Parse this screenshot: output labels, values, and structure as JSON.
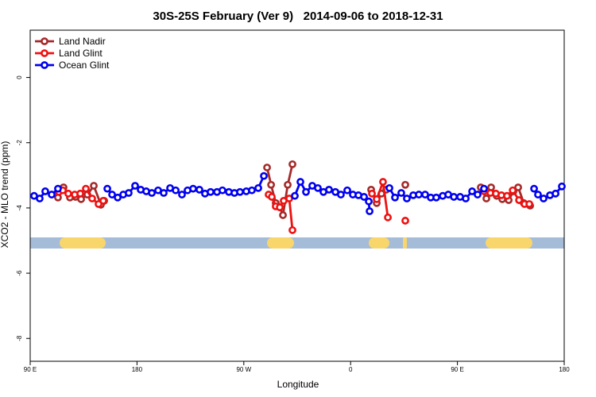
{
  "chart_data": {
    "type": "line",
    "title": "30S-25S February (Ver 9)   2014-09-06 to 2018-12-31",
    "x_label": "Longitude",
    "y_label": "XCO2 - MLO trend (ppm)",
    "xlim": [
      90,
      540
    ],
    "ylim": [
      -8.7,
      1.45
    ],
    "xticks": [
      {
        "value": 90,
        "label": "90 E"
      },
      180,
      {
        "value": 270,
        "label": "90 W"
      },
      {
        "value": 360,
        "label": "0"
      },
      {
        "value": 450,
        "label": "90 E"
      },
      {
        "value": 540,
        "label": "180"
      }
    ],
    "yticks": [
      0,
      -2,
      -4,
      -6,
      -8
    ],
    "grid": false,
    "legend": "top-left",
    "series": [
      {
        "name": "Land Nadir",
        "color": "#a52a2a",
        "x": [
          113.4,
          118.1,
          123.5,
          128.2,
          132.9,
          138.2,
          143.6,
          149.6,
          152.3,
          null,
          289.6,
          293,
          296.9,
          300.3,
          303,
          307,
          311,
          null,
          377.3,
          382,
          386,
          390,
          null,
          406.1,
          null,
          469.7,
          474.4,
          478.4,
          483.1,
          487.8,
          493.2,
          497.2,
          501.2,
          505.9,
          511.3
        ],
        "values": [
          -3.68,
          -3.37,
          -3.68,
          -3.66,
          -3.73,
          -3.59,
          -3.32,
          -3.9,
          -3.78,
          null,
          -2.76,
          -3.29,
          -3.85,
          -3.98,
          -4.22,
          -3.29,
          -2.66,
          null,
          -3.44,
          -3.85,
          -3.56,
          -3.44,
          null,
          -3.29,
          null,
          -3.37,
          -3.71,
          -3.37,
          -3.63,
          -3.73,
          -3.76,
          -3.49,
          -3.37,
          -3.85,
          -3.93
        ]
      },
      {
        "name": "Land Glint",
        "color": "#ee1111",
        "x": [
          114.1,
          117.5,
          122.1,
          127.5,
          132.2,
          136.9,
          142.2,
          147.6,
          151.6,
          null,
          290.9,
          293.6,
          296.9,
          300.3,
          303.6,
          308.3,
          311,
          null,
          378,
          382,
          387.3,
          391.4,
          null,
          406.1,
          null,
          472.4,
          477.8,
          482.4,
          487.1,
          491.8,
          496.6,
          501.9,
          506.6,
          510.6
        ],
        "values": [
          -3.51,
          -3.46,
          -3.56,
          -3.59,
          -3.56,
          -3.41,
          -3.71,
          -3.88,
          -3.78,
          null,
          -3.59,
          -3.66,
          -3.95,
          -3.98,
          -3.78,
          -3.71,
          -4.68,
          null,
          -3.56,
          -3.73,
          -3.2,
          -4.29,
          null,
          -4.39,
          null,
          -3.49,
          -3.54,
          -3.56,
          -3.61,
          -3.63,
          -3.46,
          -3.76,
          -3.88,
          -3.88
        ]
      },
      {
        "name": "Ocean Glint",
        "color": "#0000ee",
        "x": [
          93.3,
          98,
          102.7,
          108.1,
          113.4,
          null,
          155,
          159,
          163.7,
          168.4,
          173,
          178.4,
          183.1,
          187.8,
          192.5,
          197.8,
          202.5,
          207.9,
          212.6,
          217.9,
          222.6,
          227.3,
          232.6,
          237.3,
          242,
          247.4,
          252,
          257.4,
          262.1,
          266.8,
          272.1,
          276.8,
          282.2,
          286.9,
          null,
          313,
          317.7,
          322.4,
          327.7,
          332.4,
          337.1,
          341.8,
          347.2,
          351.8,
          357.2,
          361.9,
          366.6,
          371.3,
          375.3,
          376,
          null,
          392.7,
          397.4,
          402.7,
          407.4,
          412.8,
          417.5,
          422.8,
          427.5,
          432.2,
          437.6,
          442.3,
          447,
          452.3,
          457,
          462.4,
          467,
          472.4,
          null,
          514.6,
          517.9,
          522.6,
          528,
          532.7,
          538
        ],
        "values": [
          -3.63,
          -3.71,
          -3.49,
          -3.59,
          -3.41,
          null,
          -3.41,
          -3.59,
          -3.68,
          -3.59,
          -3.54,
          -3.32,
          -3.44,
          -3.49,
          -3.54,
          -3.46,
          -3.54,
          -3.39,
          -3.46,
          -3.59,
          -3.46,
          -3.41,
          -3.44,
          -3.56,
          -3.51,
          -3.51,
          -3.46,
          -3.51,
          -3.54,
          -3.51,
          -3.49,
          -3.46,
          -3.39,
          -3.02,
          null,
          -3.63,
          -3.2,
          -3.51,
          -3.32,
          -3.39,
          -3.51,
          -3.44,
          -3.51,
          -3.59,
          -3.46,
          -3.59,
          -3.61,
          -3.66,
          -3.8,
          -4.1,
          null,
          -3.39,
          -3.68,
          -3.54,
          -3.71,
          -3.61,
          -3.59,
          -3.59,
          -3.68,
          -3.68,
          -3.63,
          -3.59,
          -3.66,
          -3.66,
          -3.71,
          -3.49,
          -3.59,
          -3.41,
          null,
          -3.41,
          -3.59,
          -3.71,
          -3.61,
          -3.56,
          -3.34
        ]
      }
    ]
  }
}
